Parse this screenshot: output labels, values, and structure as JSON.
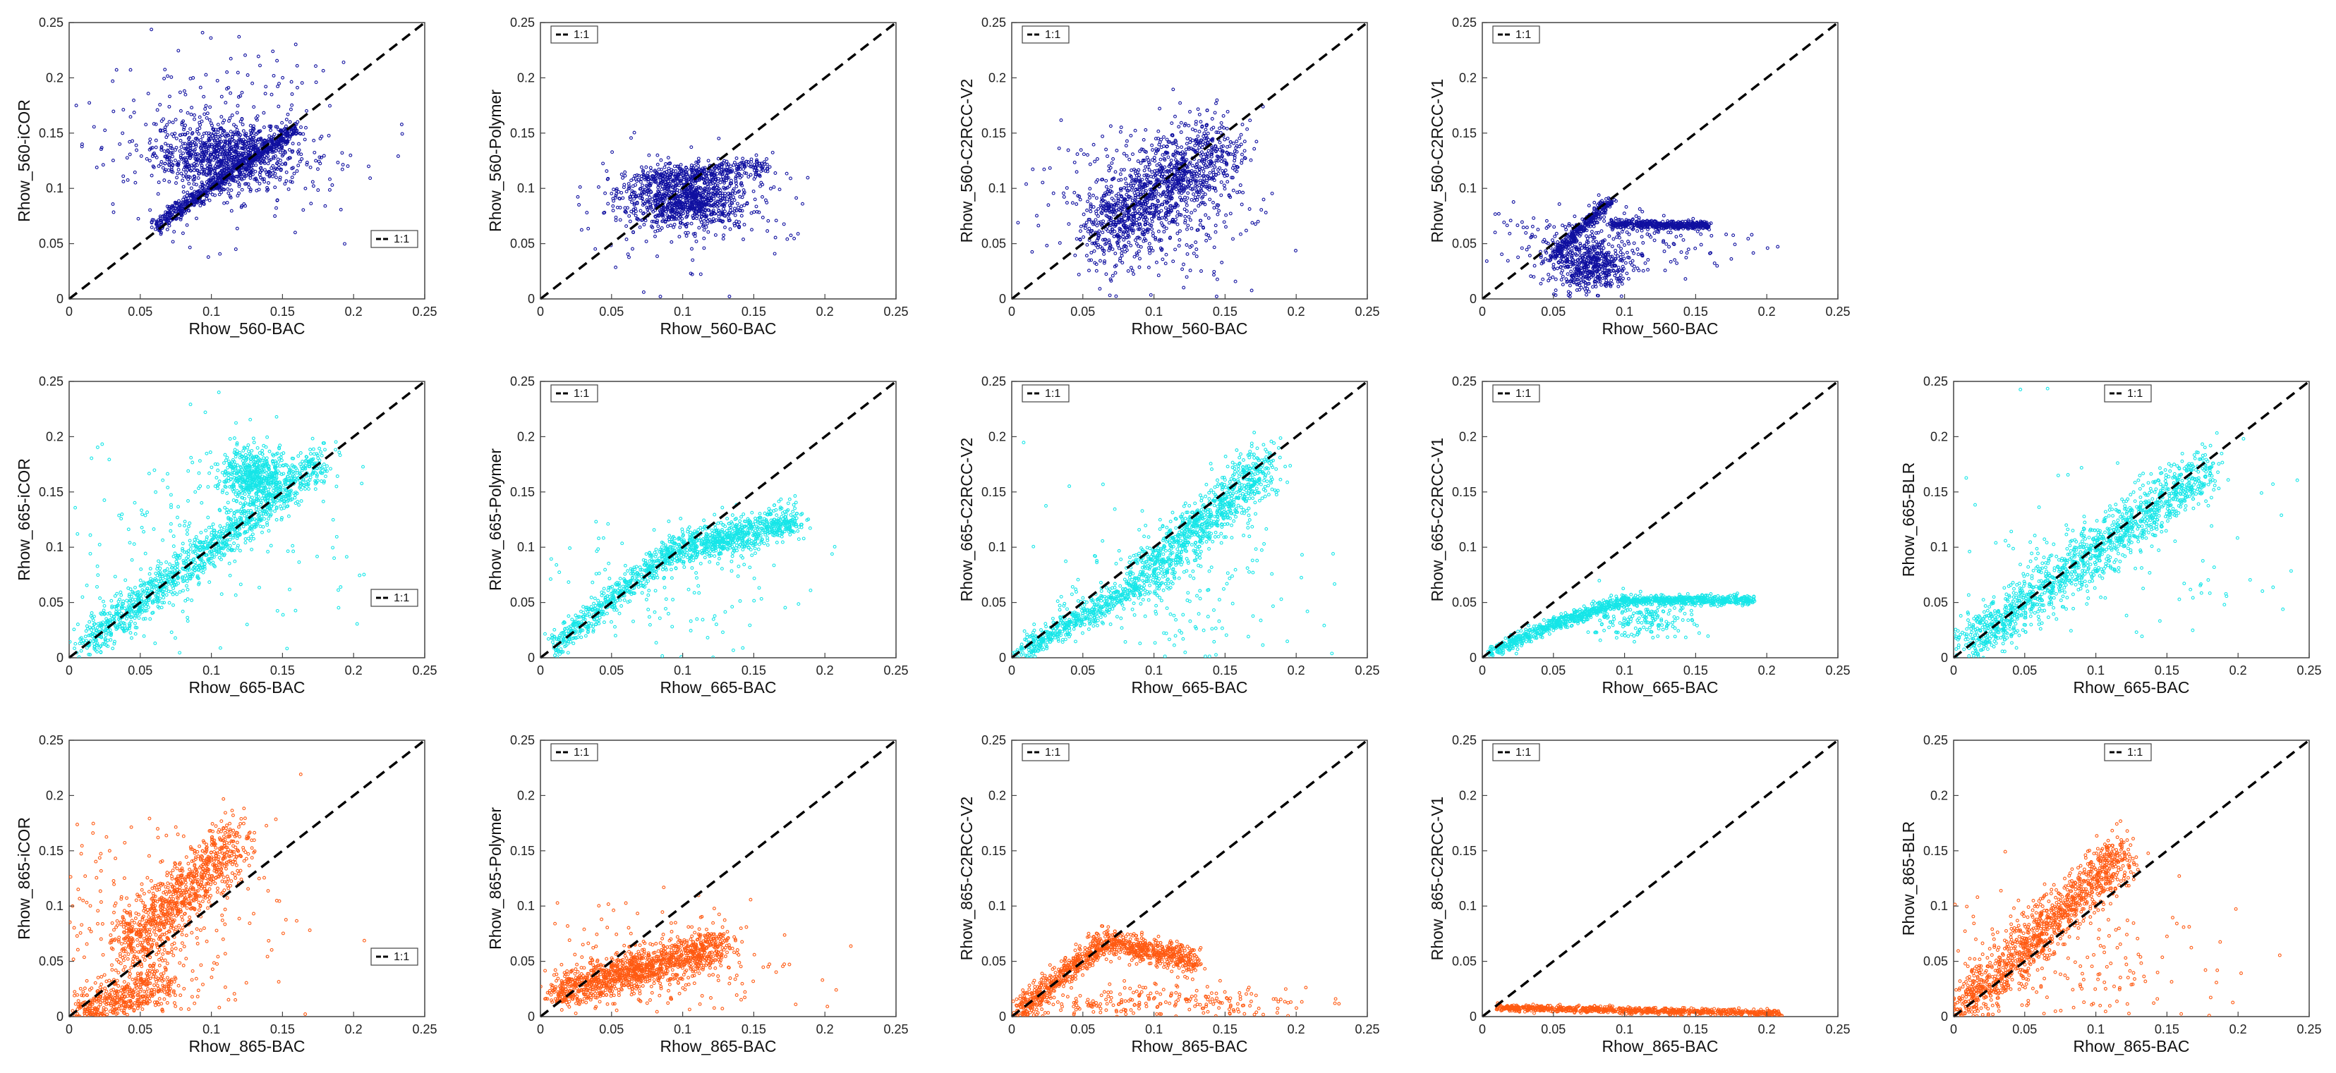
{
  "figure": {
    "legend_label": "1:1",
    "colors": {
      "560": "#1010a0",
      "665": "#16e6e8",
      "865": "#ff5a12",
      "ref_line": "#000000",
      "axis": "#444444"
    }
  },
  "chart_data": [
    {
      "id": "p560_icor",
      "type": "scatter",
      "band": "560",
      "method": "iCOR",
      "xlabel": "Rhow_560-BAC",
      "ylabel": "Rhow_560-iCOR",
      "xlim": [
        0,
        0.25
      ],
      "ylim": [
        0,
        0.25
      ],
      "xticks": [
        "0",
        "0.05",
        "0.1",
        "0.15",
        "0.2",
        "0.25"
      ],
      "yticks": [
        "0",
        "0.05",
        "0.1",
        "0.15",
        "0.2",
        "0.25"
      ],
      "legend": "bottom-right",
      "legend_label": "1:1",
      "clusters": [
        {
          "cx": 0.11,
          "cy": 0.13,
          "sx": 0.025,
          "sy": 0.015,
          "n": 900
        },
        {
          "x": [
            0.06,
            0.16
          ],
          "y": [
            0.065,
            0.155
          ],
          "noise": 0.004,
          "n": 700
        },
        {
          "cx": 0.11,
          "cy": 0.15,
          "sx": 0.05,
          "sy": 0.045,
          "n": 250
        }
      ]
    },
    {
      "id": "p560_polymer",
      "type": "scatter",
      "band": "560",
      "method": "Polymer",
      "xlabel": "Rhow_560-BAC",
      "ylabel": "Rhow_560-Polymer",
      "xlim": [
        0,
        0.25
      ],
      "ylim": [
        0,
        0.25
      ],
      "xticks": [
        "0",
        "0.05",
        "0.1",
        "0.15",
        "0.2",
        "0.25"
      ],
      "yticks": [
        "0",
        "0.05",
        "0.1",
        "0.15",
        "0.2",
        "0.25"
      ],
      "legend": "top-left",
      "legend_label": "1:1",
      "clusters": [
        {
          "cx": 0.1,
          "cy": 0.09,
          "sx": 0.022,
          "sy": 0.012,
          "n": 900
        },
        {
          "x": [
            0.07,
            0.16
          ],
          "y": [
            0.11,
            0.12
          ],
          "noise": 0.005,
          "n": 300
        },
        {
          "cx": 0.1,
          "cy": 0.08,
          "sx": 0.04,
          "sy": 0.03,
          "n": 150
        }
      ]
    },
    {
      "id": "p560_c2rccv2",
      "type": "scatter",
      "band": "560",
      "method": "C2RCC-V2",
      "xlabel": "Rhow_560-BAC",
      "ylabel": "Rhow_560-C2RCC-V2",
      "xlim": [
        0,
        0.25
      ],
      "ylim": [
        0,
        0.25
      ],
      "xticks": [
        "0",
        "0.05",
        "0.1",
        "0.15",
        "0.2",
        "0.25"
      ],
      "yticks": [
        "0",
        "0.05",
        "0.1",
        "0.15",
        "0.2",
        "0.25"
      ],
      "legend": "top-left",
      "legend_label": "1:1",
      "clusters": [
        {
          "x": [
            0.06,
            0.15
          ],
          "y": [
            0.06,
            0.14
          ],
          "noise": 0.018,
          "n": 1100
        },
        {
          "cx": 0.1,
          "cy": 0.08,
          "sx": 0.035,
          "sy": 0.04,
          "n": 350
        }
      ]
    },
    {
      "id": "p560_c2rccv1",
      "type": "scatter",
      "band": "560",
      "method": "C2RCC-V1",
      "xlabel": "Rhow_560-BAC",
      "ylabel": "Rhow_560-C2RCC-V1",
      "xlim": [
        0,
        0.25
      ],
      "ylim": [
        0,
        0.25
      ],
      "xticks": [
        "0",
        "0.05",
        "0.1",
        "0.15",
        "0.2",
        "0.25"
      ],
      "yticks": [
        "0",
        "0.05",
        "0.1",
        "0.15",
        "0.2",
        "0.25"
      ],
      "legend": "top-left",
      "legend_label": "1:1",
      "clusters": [
        {
          "x": [
            0.05,
            0.09
          ],
          "y": [
            0.04,
            0.088
          ],
          "noise": 0.003,
          "n": 300
        },
        {
          "x": [
            0.09,
            0.16
          ],
          "y": [
            0.068,
            0.066
          ],
          "noise": 0.002,
          "n": 400
        },
        {
          "cx": 0.075,
          "cy": 0.03,
          "sx": 0.015,
          "sy": 0.012,
          "n": 500
        },
        {
          "cx": 0.09,
          "cy": 0.055,
          "sx": 0.05,
          "sy": 0.015,
          "n": 200
        }
      ]
    },
    null,
    {
      "id": "p665_icor",
      "type": "scatter",
      "band": "665",
      "method": "iCOR",
      "xlabel": "Rhow_665-BAC",
      "ylabel": "Rhow_665-iCOR",
      "xlim": [
        0,
        0.25
      ],
      "ylim": [
        0,
        0.25
      ],
      "xticks": [
        "0",
        "0.05",
        "0.1",
        "0.15",
        "0.2",
        "0.25"
      ],
      "yticks": [
        "0",
        "0.05",
        "0.1",
        "0.15",
        "0.2",
        "0.25"
      ],
      "legend": "bottom-right",
      "legend_label": "1:1",
      "clusters": [
        {
          "x": [
            0.01,
            0.18
          ],
          "y": [
            0.01,
            0.18
          ],
          "noise": 0.009,
          "n": 1200
        },
        {
          "cx": 0.13,
          "cy": 0.165,
          "sx": 0.012,
          "sy": 0.012,
          "n": 500
        },
        {
          "cx": 0.09,
          "cy": 0.11,
          "sx": 0.05,
          "sy": 0.05,
          "n": 200
        }
      ]
    },
    {
      "id": "p665_polymer",
      "type": "scatter",
      "band": "665",
      "method": "Polymer",
      "xlabel": "Rhow_665-BAC",
      "ylabel": "Rhow_665-Polymer",
      "xlim": [
        0,
        0.25
      ],
      "ylim": [
        0,
        0.25
      ],
      "xticks": [
        "0",
        "0.05",
        "0.1",
        "0.15",
        "0.2",
        "0.25"
      ],
      "yticks": [
        "0",
        "0.05",
        "0.1",
        "0.15",
        "0.2",
        "0.25"
      ],
      "legend": "top-left",
      "legend_label": "1:1",
      "clusters": [
        {
          "x": [
            0.01,
            0.09
          ],
          "y": [
            0.01,
            0.095
          ],
          "noise": 0.006,
          "n": 500
        },
        {
          "x": [
            0.09,
            0.18
          ],
          "y": [
            0.095,
            0.125
          ],
          "noise": 0.008,
          "n": 800
        },
        {
          "cx": 0.1,
          "cy": 0.06,
          "sx": 0.05,
          "sy": 0.03,
          "n": 100
        }
      ]
    },
    {
      "id": "p665_c2rccv2",
      "type": "scatter",
      "band": "665",
      "method": "C2RCC-V2",
      "xlabel": "Rhow_665-BAC",
      "ylabel": "Rhow_665-C2RCC-V2",
      "xlim": [
        0,
        0.25
      ],
      "ylim": [
        0,
        0.25
      ],
      "xticks": [
        "0",
        "0.05",
        "0.1",
        "0.15",
        "0.2",
        "0.25"
      ],
      "yticks": [
        "0",
        "0.05",
        "0.1",
        "0.15",
        "0.2",
        "0.25"
      ],
      "legend": "top-left",
      "legend_label": "1:1",
      "clusters": [
        {
          "x": [
            0.005,
            0.09
          ],
          "y": [
            0.005,
            0.065
          ],
          "noise": 0.006,
          "n": 500
        },
        {
          "x": [
            0.09,
            0.18
          ],
          "y": [
            0.07,
            0.175
          ],
          "noise": 0.012,
          "n": 900
        },
        {
          "cx": 0.11,
          "cy": 0.06,
          "sx": 0.05,
          "sy": 0.04,
          "n": 200
        }
      ]
    },
    {
      "id": "p665_c2rccv1",
      "type": "scatter",
      "band": "665",
      "method": "C2RCC-V1",
      "xlabel": "Rhow_665-BAC",
      "ylabel": "Rhow_665-C2RCC-V1",
      "xlim": [
        0,
        0.25
      ],
      "ylim": [
        0,
        0.25
      ],
      "xticks": [
        "0",
        "0.05",
        "0.1",
        "0.15",
        "0.2",
        "0.25"
      ],
      "yticks": [
        "0",
        "0.05",
        "0.1",
        "0.15",
        "0.2",
        "0.25"
      ],
      "legend": "top-left",
      "legend_label": "1:1",
      "clusters": [
        {
          "x": [
            0.005,
            0.05
          ],
          "y": [
            0.005,
            0.03
          ],
          "noise": 0.003,
          "n": 250
        },
        {
          "x": [
            0.05,
            0.1
          ],
          "y": [
            0.03,
            0.052
          ],
          "noise": 0.003,
          "n": 350
        },
        {
          "x": [
            0.1,
            0.19
          ],
          "y": [
            0.052,
            0.052
          ],
          "noise": 0.002,
          "n": 500
        },
        {
          "cx": 0.11,
          "cy": 0.035,
          "sx": 0.02,
          "sy": 0.01,
          "n": 200
        }
      ]
    },
    {
      "id": "p665_blr",
      "type": "scatter",
      "band": "665",
      "method": "BLR",
      "xlabel": "Rhow_665-BAC",
      "ylabel": "Rhow_665-BLR",
      "xlim": [
        0,
        0.25
      ],
      "ylim": [
        0,
        0.25
      ],
      "xticks": [
        "0",
        "0.05",
        "0.1",
        "0.15",
        "0.2",
        "0.25"
      ],
      "yticks": [
        "0",
        "0.05",
        "0.1",
        "0.15",
        "0.2",
        "0.25"
      ],
      "legend": "top-right",
      "legend_label": "1:1",
      "clusters": [
        {
          "x": [
            0.01,
            0.18
          ],
          "y": [
            0.01,
            0.175
          ],
          "noise": 0.012,
          "n": 1400
        },
        {
          "cx": 0.12,
          "cy": 0.08,
          "sx": 0.06,
          "sy": 0.05,
          "n": 100
        }
      ]
    },
    {
      "id": "p865_icor",
      "type": "scatter",
      "band": "865",
      "method": "iCOR",
      "xlabel": "Rhow_865-BAC",
      "ylabel": "Rhow_865-iCOR",
      "xlim": [
        0,
        0.25
      ],
      "ylim": [
        0,
        0.25
      ],
      "xticks": [
        "0",
        "0.05",
        "0.1",
        "0.15",
        "0.2",
        "0.25"
      ],
      "yticks": [
        "0",
        "0.05",
        "0.1",
        "0.15",
        "0.2",
        "0.25"
      ],
      "legend": "bottom-right",
      "legend_label": "1:1",
      "clusters": [
        {
          "x": [
            0.04,
            0.12
          ],
          "y": [
            0.06,
            0.16
          ],
          "noise": 0.014,
          "n": 900
        },
        {
          "x": [
            0.0,
            0.07
          ],
          "y": [
            0.0,
            0.03
          ],
          "noise": 0.01,
          "n": 500
        },
        {
          "cx": 0.05,
          "cy": 0.07,
          "sx": 0.05,
          "sy": 0.05,
          "n": 300
        }
      ]
    },
    {
      "id": "p865_polymer",
      "type": "scatter",
      "band": "865",
      "method": "Polymer",
      "xlabel": "Rhow_865-BAC",
      "ylabel": "Rhow_865-Polymer",
      "xlim": [
        0,
        0.25
      ],
      "ylim": [
        0,
        0.25
      ],
      "xticks": [
        "0",
        "0.05",
        "0.1",
        "0.15",
        "0.2",
        "0.25"
      ],
      "yticks": [
        "0",
        "0.05",
        "0.1",
        "0.15",
        "0.2",
        "0.25"
      ],
      "legend": "top-left",
      "legend_label": "1:1",
      "clusters": [
        {
          "x": [
            0.01,
            0.13
          ],
          "y": [
            0.02,
            0.065
          ],
          "noise": 0.009,
          "n": 1200
        },
        {
          "cx": 0.07,
          "cy": 0.04,
          "sx": 0.05,
          "sy": 0.03,
          "n": 200
        }
      ]
    },
    {
      "id": "p865_c2rccv2",
      "type": "scatter",
      "band": "865",
      "method": "C2RCC-V2",
      "xlabel": "Rhow_865-BAC",
      "ylabel": "Rhow_865-C2RCC-V2",
      "xlim": [
        0,
        0.25
      ],
      "ylim": [
        0,
        0.25
      ],
      "xticks": [
        "0",
        "0.05",
        "0.1",
        "0.15",
        "0.2",
        "0.25"
      ],
      "yticks": [
        "0",
        "0.05",
        "0.1",
        "0.15",
        "0.2",
        "0.25"
      ],
      "legend": "top-left",
      "legend_label": "1:1",
      "clusters": [
        {
          "x": [
            0.005,
            0.065
          ],
          "y": [
            0.005,
            0.068
          ],
          "noise": 0.006,
          "n": 500
        },
        {
          "x": [
            0.065,
            0.13
          ],
          "y": [
            0.068,
            0.05
          ],
          "noise": 0.006,
          "n": 500
        },
        {
          "cx": 0.1,
          "cy": 0.012,
          "sx": 0.06,
          "sy": 0.008,
          "n": 250
        }
      ]
    },
    {
      "id": "p865_c2rccv1",
      "type": "scatter",
      "band": "865",
      "method": "C2RCC-V1",
      "xlabel": "Rhow_865-BAC",
      "ylabel": "Rhow_865-C2RCC-V1",
      "xlim": [
        0,
        0.25
      ],
      "ylim": [
        0,
        0.25
      ],
      "xticks": [
        "0",
        "0.05",
        "0.1",
        "0.15",
        "0.2",
        "0.25"
      ],
      "yticks": [
        "0",
        "0.05",
        "0.1",
        "0.15",
        "0.2",
        "0.25"
      ],
      "legend": "top-left",
      "legend_label": "1:1",
      "clusters": [
        {
          "x": [
            0.01,
            0.21
          ],
          "y": [
            0.008,
            0.003
          ],
          "noise": 0.0015,
          "n": 800
        }
      ]
    },
    {
      "id": "p865_blr",
      "type": "scatter",
      "band": "865",
      "method": "BLR",
      "xlabel": "Rhow_865-BAC",
      "ylabel": "Rhow_865-BLR",
      "xlim": [
        0,
        0.25
      ],
      "ylim": [
        0,
        0.25
      ],
      "xticks": [
        "0",
        "0.05",
        "0.1",
        "0.15",
        "0.2",
        "0.25"
      ],
      "yticks": [
        "0",
        "0.05",
        "0.1",
        "0.15",
        "0.2",
        "0.25"
      ],
      "legend": "top-right",
      "legend_label": "1:1",
      "clusters": [
        {
          "x": [
            0.0,
            0.12
          ],
          "y": [
            0.0,
            0.15
          ],
          "noise": 0.012,
          "n": 1200
        },
        {
          "cx": 0.08,
          "cy": 0.04,
          "sx": 0.06,
          "sy": 0.04,
          "n": 200
        }
      ]
    }
  ]
}
